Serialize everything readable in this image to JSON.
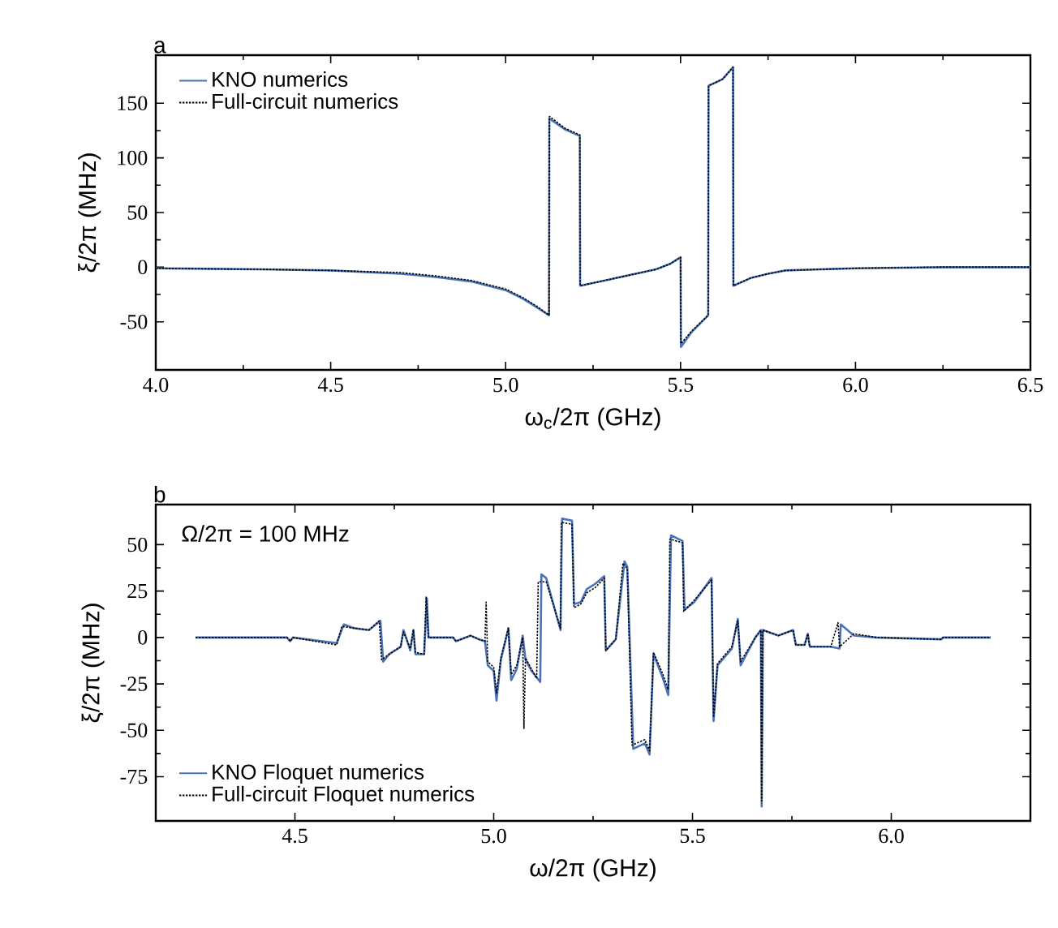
{
  "chart_data": [
    {
      "type": "line",
      "xlabel": "ω$_{c}$/2π (GHz)",
      "ylabel": "ξ/2π (MHz)",
      "annotations": [
        "a"
      ],
      "legend": "top left",
      "xlim": [
        4.0,
        6.5
      ],
      "ylim": [
        -94,
        194
      ],
      "xticks": [
        {
          "value": 4.0,
          "label": "4.0"
        },
        {
          "value": 4.5,
          "label": "4.5"
        },
        {
          "value": 5.0,
          "label": "5.0"
        },
        {
          "value": 5.5,
          "label": "5.5"
        },
        {
          "value": 6.0,
          "label": "6.0"
        },
        {
          "value": 6.5,
          "label": "6.5"
        }
      ],
      "yticks": [
        -50,
        0,
        50,
        100,
        150
      ],
      "series": [
        {
          "name": "KNO numerics",
          "color": "#4a72b8",
          "line_style": "solid",
          "x": [
            4.0,
            4.3,
            4.5,
            4.7,
            4.8,
            4.9,
            5.0,
            5.05,
            5.09,
            5.124,
            5.125,
            5.17,
            5.212,
            5.213,
            5.3,
            5.43,
            5.47,
            5.5,
            5.501,
            5.53,
            5.579,
            5.58,
            5.62,
            5.65,
            5.651,
            5.7,
            5.75,
            5.8,
            5.9,
            6.0,
            6.25,
            6.5
          ],
          "values": [
            -1,
            -2,
            -3,
            -6,
            -9,
            -13,
            -21,
            -29,
            -37,
            -44,
            136,
            126,
            120,
            -17,
            -11,
            -2,
            3,
            9,
            -73,
            -60,
            -44,
            166,
            172,
            183,
            -17,
            -10,
            -6,
            -3,
            -2,
            -1,
            0,
            0
          ]
        },
        {
          "name": "Full-circuit numerics",
          "color": "#000000",
          "line_style": "dashed",
          "x": [
            4.0,
            4.3,
            4.5,
            4.7,
            4.8,
            4.9,
            5.0,
            5.05,
            5.09,
            5.124,
            5.125,
            5.17,
            5.212,
            5.213,
            5.3,
            5.43,
            5.47,
            5.5,
            5.501,
            5.53,
            5.579,
            5.58,
            5.62,
            5.65,
            5.651,
            5.7,
            5.75,
            5.8,
            5.9,
            6.0,
            6.25,
            6.5
          ],
          "values": [
            -1,
            -2,
            -3,
            -5,
            -8,
            -12,
            -20,
            -28,
            -36,
            -44,
            138,
            127,
            121,
            -17,
            -11,
            -2,
            3,
            9,
            -70,
            -59,
            -44,
            166,
            172,
            183,
            -17,
            -10,
            -6,
            -3,
            -2,
            -1,
            0,
            0
          ]
        }
      ]
    },
    {
      "type": "line",
      "xlabel": "ω/2π (GHz)",
      "ylabel": "ξ/2π (MHz)",
      "annotations": [
        "b",
        "Ω/2π = 100 MHz"
      ],
      "legend": "bottom left",
      "xlim": [
        4.15,
        6.35
      ],
      "ylim": [
        -98.8,
        71.6
      ],
      "xticks": [
        {
          "value": 4.5,
          "label": "4.5"
        },
        {
          "value": 5.0,
          "label": "5.0"
        },
        {
          "value": 5.5,
          "label": "5.5"
        },
        {
          "value": 6.0,
          "label": "6.0"
        }
      ],
      "yticks": [
        -75,
        -50,
        -25,
        0,
        25,
        50
      ],
      "series": [
        {
          "name": "KNO Floquet numerics",
          "color": "#4a72b8",
          "line_style": "solid",
          "x": [
            4.25,
            4.48,
            4.488,
            4.495,
            4.605,
            4.623,
            4.649,
            4.686,
            4.715,
            4.722,
            4.737,
            4.766,
            4.773,
            4.781,
            4.79,
            4.798,
            4.803,
            4.825,
            4.832,
            4.836,
            4.898,
            4.905,
            4.942,
            4.963,
            4.978,
            4.985,
            5.0,
            5.007,
            5.018,
            5.037,
            5.044,
            5.058,
            5.073,
            5.08,
            5.095,
            5.117,
            5.12,
            5.132,
            5.168,
            5.172,
            5.197,
            5.202,
            5.219,
            5.234,
            5.256,
            5.278,
            5.282,
            5.307,
            5.329,
            5.336,
            5.351,
            5.38,
            5.392,
            5.402,
            5.424,
            5.439,
            5.446,
            5.475,
            5.48,
            5.504,
            5.548,
            5.553,
            5.563,
            5.599,
            5.614,
            5.621,
            5.658,
            5.672,
            5.674,
            5.677,
            5.716,
            5.753,
            5.76,
            5.782,
            5.79,
            5.795,
            5.848,
            5.87,
            5.873,
            5.906,
            5.963,
            6.126,
            6.13,
            6.25
          ],
          "values": [
            0,
            0,
            -2,
            0,
            -3,
            7,
            5,
            4,
            9,
            -13,
            -9,
            -5,
            4,
            -1,
            -7,
            4,
            -9,
            -9,
            21,
            0,
            0,
            -2,
            1,
            -1,
            -2,
            -15,
            -18,
            -34,
            -12,
            5,
            -23,
            -17,
            1,
            -12,
            -18,
            -24,
            34,
            32,
            4,
            64,
            63,
            18,
            19,
            26,
            29,
            33,
            -7,
            -1,
            41,
            38,
            -60,
            -57,
            -63,
            -9,
            -21,
            -31,
            55,
            52,
            15,
            19,
            32,
            -45,
            -15,
            -6,
            10,
            -15,
            0,
            4,
            -91,
            4,
            1,
            4,
            -4,
            -4,
            2,
            -5,
            -5,
            -6,
            7,
            1,
            0,
            -1,
            0,
            0
          ]
        },
        {
          "name": "Full-circuit Floquet numerics",
          "color": "#000000",
          "line_style": "dashed",
          "x": [
            4.25,
            4.48,
            4.488,
            4.495,
            4.605,
            4.618,
            4.649,
            4.686,
            4.712,
            4.718,
            4.737,
            4.766,
            4.773,
            4.781,
            4.79,
            4.798,
            4.803,
            4.825,
            4.83,
            4.836,
            4.898,
            4.905,
            4.942,
            4.963,
            4.978,
            4.981,
            4.985,
            5.0,
            5.007,
            5.018,
            5.037,
            5.044,
            5.058,
            5.073,
            5.076,
            5.08,
            5.095,
            5.108,
            5.112,
            5.132,
            5.168,
            5.17,
            5.197,
            5.202,
            5.219,
            5.234,
            5.256,
            5.278,
            5.282,
            5.307,
            5.325,
            5.336,
            5.348,
            5.38,
            5.392,
            5.402,
            5.424,
            5.439,
            5.443,
            5.475,
            5.478,
            5.504,
            5.548,
            5.553,
            5.563,
            5.599,
            5.614,
            5.621,
            5.658,
            5.672,
            5.674,
            5.677,
            5.716,
            5.753,
            5.76,
            5.782,
            5.79,
            5.795,
            5.848,
            5.866,
            5.87,
            5.906,
            5.963,
            6.126,
            6.13,
            6.25
          ],
          "values": [
            0,
            0,
            -2,
            0,
            -4,
            6,
            5,
            4,
            9,
            -12,
            -9,
            -5,
            3,
            -1,
            -6,
            4,
            -8,
            -9,
            22,
            0,
            0,
            -2,
            1,
            -1,
            -2,
            19,
            -13,
            -16,
            -30,
            -11,
            5,
            -20,
            -15,
            0,
            -49,
            -11,
            -17,
            -22,
            30,
            30,
            5,
            62,
            61,
            16,
            18,
            24,
            27,
            32,
            -7,
            -1,
            40,
            37,
            -58,
            -55,
            -61,
            -8,
            -19,
            -28,
            53,
            51,
            14,
            20,
            31,
            -43,
            -14,
            -5,
            9,
            -13,
            0,
            4,
            -88,
            4,
            1,
            4,
            -4,
            -4,
            2,
            -5,
            -5,
            8,
            -5,
            2,
            0,
            -1,
            0,
            0
          ]
        }
      ]
    }
  ]
}
